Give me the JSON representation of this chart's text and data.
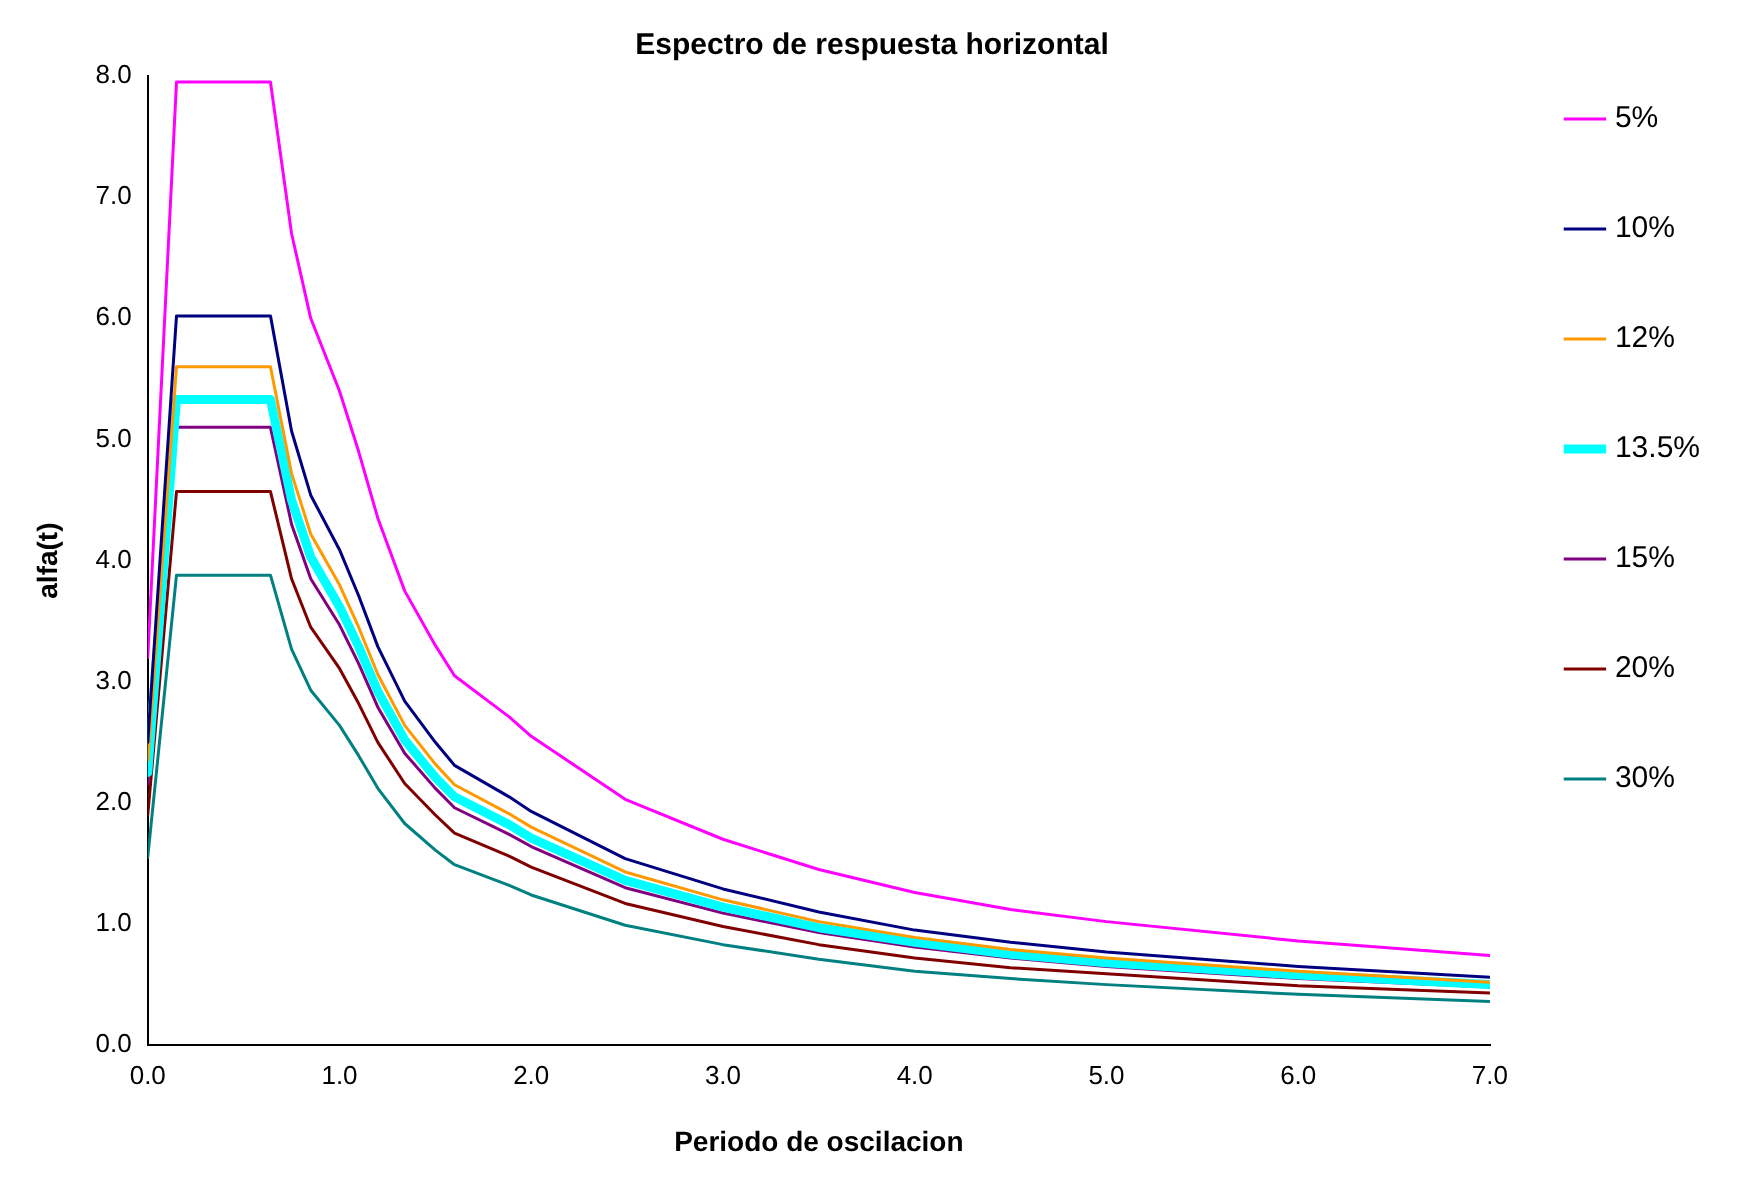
{
  "chart_data": {
    "type": "line",
    "title": "Espectro de respuesta horizontal",
    "xlabel": "Periodo de oscilacion",
    "ylabel": "alfa(t)",
    "x": [
      0,
      0.15,
      0.64,
      0.75,
      0.85,
      1.0,
      1.1,
      1.2,
      1.34,
      1.5,
      1.6,
      1.885,
      2.0,
      2.49,
      3.0,
      3.5,
      4.0,
      4.5,
      5.0,
      6.0,
      7.0
    ],
    "series": [
      {
        "name": "5%",
        "color": "#ff00ff",
        "values": [
          3.2,
          7.95,
          7.95,
          6.7,
          6.0,
          5.4,
          4.9,
          4.35,
          3.75,
          3.3,
          3.05,
          2.71,
          2.55,
          2.03,
          1.7,
          1.45,
          1.26,
          1.12,
          1.02,
          0.86,
          0.74
        ]
      },
      {
        "name": "10%",
        "color": "#000080",
        "values": [
          2.5,
          6.02,
          6.02,
          5.07,
          4.54,
          4.09,
          3.71,
          3.29,
          2.84,
          2.5,
          2.31,
          2.05,
          1.93,
          1.54,
          1.29,
          1.1,
          0.95,
          0.85,
          0.77,
          0.65,
          0.56
        ]
      },
      {
        "name": "12%",
        "color": "#ff9900",
        "values": [
          2.35,
          5.6,
          5.6,
          4.72,
          4.22,
          3.8,
          3.45,
          3.06,
          2.64,
          2.32,
          2.15,
          1.91,
          1.8,
          1.43,
          1.2,
          1.02,
          0.89,
          0.79,
          0.72,
          0.61,
          0.52
        ]
      },
      {
        "name": "13.5%",
        "color": "#00ffff",
        "values": [
          2.25,
          5.33,
          5.33,
          4.5,
          4.03,
          3.62,
          3.29,
          2.92,
          2.52,
          2.21,
          2.05,
          1.82,
          1.71,
          1.36,
          1.14,
          0.97,
          0.85,
          0.75,
          0.68,
          0.58,
          0.5
        ]
      },
      {
        "name": "15%",
        "color": "#800080",
        "values": [
          2.15,
          5.1,
          5.1,
          4.3,
          3.85,
          3.47,
          3.15,
          2.79,
          2.41,
          2.12,
          1.96,
          1.74,
          1.64,
          1.3,
          1.09,
          0.93,
          0.81,
          0.72,
          0.65,
          0.55,
          0.48
        ]
      },
      {
        "name": "20%",
        "color": "#800000",
        "values": [
          1.9,
          4.57,
          4.57,
          3.85,
          3.45,
          3.11,
          2.82,
          2.5,
          2.16,
          1.9,
          1.75,
          1.56,
          1.47,
          1.17,
          0.98,
          0.83,
          0.72,
          0.64,
          0.59,
          0.49,
          0.43
        ]
      },
      {
        "name": "30%",
        "color": "#008080",
        "values": [
          1.55,
          3.88,
          3.88,
          3.27,
          2.93,
          2.64,
          2.39,
          2.12,
          1.83,
          1.61,
          1.49,
          1.32,
          1.24,
          0.99,
          0.83,
          0.71,
          0.61,
          0.55,
          0.5,
          0.42,
          0.36
        ]
      }
    ],
    "xlim": [
      0,
      7
    ],
    "xticks": [
      {
        "value": 0,
        "label": "0.0"
      },
      {
        "value": 1,
        "label": "1.0"
      },
      {
        "value": 2,
        "label": "2.0"
      },
      {
        "value": 3,
        "label": "3.0"
      },
      {
        "value": 4,
        "label": "4.0"
      },
      {
        "value": 5,
        "label": "5.0"
      },
      {
        "value": 6,
        "label": "6.0"
      },
      {
        "value": 7,
        "label": "7.0"
      }
    ],
    "ylim": [
      0,
      8
    ],
    "yticks": [
      {
        "value": 0,
        "label": "0.0"
      },
      {
        "value": 1,
        "label": "1.0"
      },
      {
        "value": 2,
        "label": "2.0"
      },
      {
        "value": 3,
        "label": "3.0"
      },
      {
        "value": 4,
        "label": "4.0"
      },
      {
        "value": 5,
        "label": "5.0"
      },
      {
        "value": 6,
        "label": "6.0"
      },
      {
        "value": 7,
        "label": "7.0"
      },
      {
        "value": 8,
        "label": "8.0"
      }
    ],
    "grid": false,
    "legend": "top right",
    "marker": "none",
    "line_style": "solid"
  }
}
